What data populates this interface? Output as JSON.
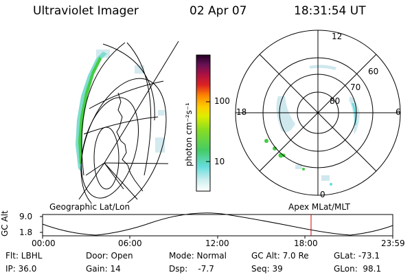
{
  "header": {
    "instrument": "Ultraviolet Imager",
    "date": "02 Apr 07",
    "time": "18:31:54 UT"
  },
  "colorbar": {
    "unit_label": "photon cm⁻²s⁻¹",
    "ticks": [
      "100",
      "10"
    ]
  },
  "polar_plot": {
    "mlt_labels": [
      "12",
      "18",
      "6",
      "0"
    ],
    "lat_labels": [
      "60",
      "70",
      "80"
    ]
  },
  "panel_labels": {
    "left": "Geographic Lat/Lon",
    "right": "Apex MLat/MLT"
  },
  "orbit": {
    "ylabel": "GC Alt",
    "y_ticks": [
      "9.0",
      "1.8"
    ],
    "x_ticks": [
      "00:00",
      "06:00",
      "12:00",
      "18:00",
      "23:59"
    ]
  },
  "info": {
    "flt": "Flt: LBHL",
    "ip": "IP: 36.0",
    "door": "Door: Open",
    "gain": "Gain: 14",
    "mode": "Mode: Normal",
    "dsp": "Dsp:    -7.7",
    "gcalt": "GC Alt: 7.0 Re",
    "seq": "Seq: 39",
    "glat": "GLat: -73.1",
    "glon": "GLon:  98.1"
  },
  "colors": {
    "aurora_green": "#44cc44",
    "aurora_cyan": "#66dddd",
    "marker_red": "#cc0000"
  }
}
